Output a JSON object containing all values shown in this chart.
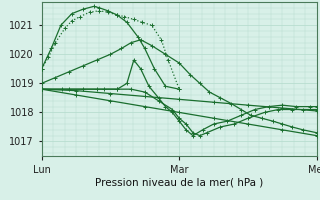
{
  "title": "Pression niveau de la mer( hPa )",
  "bg_color": "#d8f0e8",
  "grid_color": "#b8ddd0",
  "line_color": "#1a6e2e",
  "ylim": [
    1016.5,
    1021.8
  ],
  "yticks": [
    1017,
    1018,
    1019,
    1020,
    1021
  ],
  "xticks": [
    0,
    1.0,
    2.0
  ],
  "xlabels": [
    "Lun",
    "Mar",
    "Mer"
  ],
  "xlim": [
    0,
    2.0
  ],
  "series": [
    {
      "x": [
        0.0,
        0.05,
        0.1,
        0.17,
        0.22,
        0.28,
        0.35,
        0.42,
        0.48,
        0.55,
        0.6,
        0.67,
        0.73,
        0.8,
        0.87,
        0.92,
        1.0
      ],
      "y": [
        1019.5,
        1019.9,
        1020.4,
        1020.9,
        1021.15,
        1021.3,
        1021.45,
        1021.5,
        1021.45,
        1021.35,
        1021.3,
        1021.2,
        1021.1,
        1021.0,
        1020.5,
        1019.8,
        1018.8
      ],
      "style": ":",
      "lw": 0.9
    },
    {
      "x": [
        0.0,
        0.07,
        0.14,
        0.22,
        0.3,
        0.38,
        0.42,
        0.48,
        0.55,
        0.62,
        0.7,
        0.75,
        0.82,
        0.9,
        1.0
      ],
      "y": [
        1019.5,
        1020.2,
        1021.0,
        1021.4,
        1021.55,
        1021.65,
        1021.6,
        1021.5,
        1021.35,
        1021.1,
        1020.6,
        1020.2,
        1019.5,
        1018.9,
        1018.8
      ],
      "style": "-",
      "lw": 0.9
    },
    {
      "x": [
        0.0,
        0.1,
        0.2,
        0.3,
        0.4,
        0.5,
        0.58,
        0.65,
        0.72,
        0.8,
        0.9,
        1.0,
        1.08,
        1.15,
        1.22,
        1.3,
        1.38,
        1.45,
        1.52,
        1.6,
        1.68,
        1.75,
        1.82,
        1.9,
        2.0
      ],
      "y": [
        1019.0,
        1019.2,
        1019.4,
        1019.6,
        1019.8,
        1020.0,
        1020.2,
        1020.4,
        1020.5,
        1020.3,
        1020.0,
        1019.7,
        1019.3,
        1019.0,
        1018.7,
        1018.5,
        1018.3,
        1018.1,
        1017.9,
        1017.8,
        1017.7,
        1017.6,
        1017.5,
        1017.4,
        1017.3
      ],
      "style": "-",
      "lw": 0.9
    },
    {
      "x": [
        0.0,
        0.25,
        0.5,
        0.75,
        1.0,
        1.25,
        1.5,
        1.75,
        2.0
      ],
      "y": [
        1018.8,
        1018.75,
        1018.65,
        1018.55,
        1018.45,
        1018.35,
        1018.25,
        1018.15,
        1018.05
      ],
      "style": "-",
      "lw": 0.9
    },
    {
      "x": [
        0.0,
        0.25,
        0.5,
        0.75,
        1.0,
        1.25,
        1.5,
        1.75,
        2.0
      ],
      "y": [
        1018.8,
        1018.6,
        1018.4,
        1018.2,
        1018.0,
        1017.8,
        1017.6,
        1017.4,
        1017.2
      ],
      "style": "-",
      "lw": 0.9
    },
    {
      "x": [
        0.0,
        0.15,
        0.3,
        0.45,
        0.55,
        0.62,
        0.67,
        0.72,
        0.78,
        0.85,
        0.9,
        0.95,
        1.0,
        1.05,
        1.1,
        1.17,
        1.25,
        1.35,
        1.45,
        1.55,
        1.65,
        1.75,
        1.85,
        1.95,
        2.0
      ],
      "y": [
        1018.8,
        1018.8,
        1018.8,
        1018.8,
        1018.8,
        1019.0,
        1019.8,
        1019.5,
        1018.9,
        1018.5,
        1018.2,
        1018.0,
        1017.7,
        1017.4,
        1017.2,
        1017.4,
        1017.6,
        1017.7,
        1017.9,
        1018.1,
        1018.2,
        1018.25,
        1018.2,
        1018.2,
        1018.2
      ],
      "style": "-",
      "lw": 0.9
    },
    {
      "x": [
        0.0,
        0.2,
        0.4,
        0.55,
        0.65,
        0.75,
        0.85,
        0.95,
        1.0,
        1.05,
        1.1,
        1.15,
        1.2,
        1.3,
        1.4,
        1.5,
        1.62,
        1.72,
        1.82,
        1.9,
        2.0
      ],
      "y": [
        1018.8,
        1018.8,
        1018.8,
        1018.8,
        1018.8,
        1018.7,
        1018.4,
        1018.1,
        1017.8,
        1017.6,
        1017.3,
        1017.2,
        1017.3,
        1017.5,
        1017.6,
        1017.8,
        1018.0,
        1018.1,
        1018.1,
        1018.1,
        1018.1
      ],
      "style": "-",
      "lw": 0.9
    }
  ]
}
